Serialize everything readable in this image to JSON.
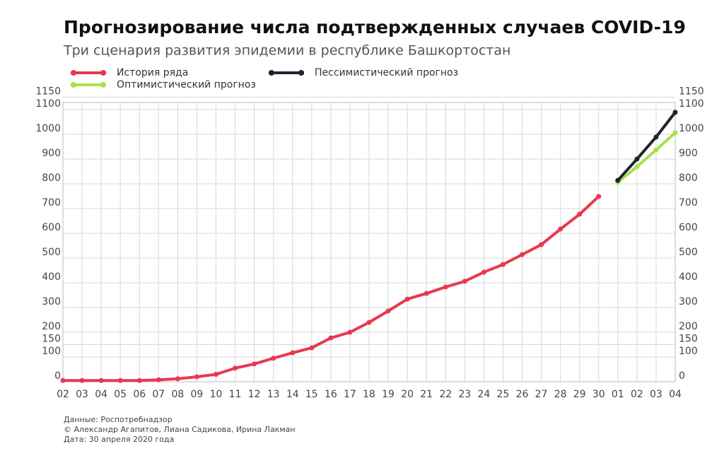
{
  "chart_data": {
    "type": "line",
    "title": "Прогнозирование числа подтвержденных случаев COVID-19",
    "subtitle": "Три сценария развития эпидемии в республике Башкортостан",
    "categories": [
      "02",
      "03",
      "04",
      "05",
      "06",
      "07",
      "08",
      "09",
      "10",
      "11",
      "12",
      "13",
      "14",
      "15",
      "16",
      "17",
      "18",
      "19",
      "20",
      "21",
      "22",
      "23",
      "24",
      "25",
      "26",
      "27",
      "28",
      "29",
      "30",
      "01",
      "02",
      "03",
      "04"
    ],
    "series": [
      {
        "name": "История ряда",
        "color": "#e8384f",
        "values": [
          5,
          5,
          5,
          5,
          5,
          8,
          12,
          20,
          30,
          55,
          72,
          95,
          117,
          137,
          177,
          200,
          240,
          286,
          334,
          357,
          383,
          406,
          443,
          474,
          514,
          554,
          617,
          677,
          749,
          null,
          null,
          null,
          null
        ]
      },
      {
        "name": "Оптимистический прогноз",
        "color": "#a6e24a",
        "values": [
          null,
          null,
          null,
          null,
          null,
          null,
          null,
          null,
          null,
          null,
          null,
          null,
          null,
          null,
          null,
          null,
          null,
          null,
          null,
          null,
          null,
          null,
          null,
          null,
          null,
          null,
          null,
          null,
          null,
          806,
          869,
          937,
          1006
        ]
      },
      {
        "name": "Пессимистический прогноз",
        "color": "#1f2430",
        "values": [
          null,
          null,
          null,
          null,
          null,
          null,
          null,
          null,
          null,
          null,
          null,
          null,
          null,
          null,
          null,
          null,
          null,
          null,
          null,
          null,
          null,
          null,
          null,
          null,
          null,
          null,
          null,
          null,
          null,
          814,
          900,
          989,
          1089
        ]
      }
    ],
    "ylim": [
      0,
      1150
    ],
    "yticks": [
      0,
      100,
      150,
      200,
      300,
      400,
      500,
      600,
      700,
      800,
      900,
      1000,
      1100,
      1150
    ],
    "grid": true,
    "notes": [
      "Данные: Роспотребнадзор",
      "© Александр Агапитов, Лиана Садикова, Ирина Лакман",
      "Дата: 30 апреля 2020 года"
    ]
  }
}
